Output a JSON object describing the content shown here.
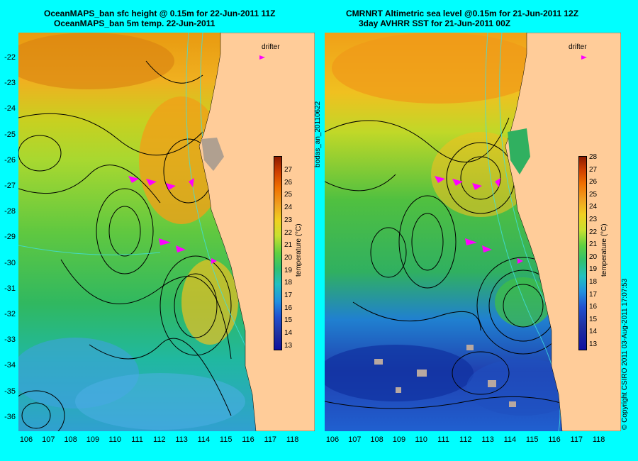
{
  "left_panel": {
    "title_line1": "OceanMAPS_ban sfc height  @ 0.15m for 22-Jun-2011 11Z",
    "title_line2": "OceanMAPS_ban 5m temp. 22-Jun-2011",
    "drifter_label": "drifter"
  },
  "right_panel": {
    "title_line1": "CMRNRT Altimetric sea level  @0.15m  for 21-Jun-2011 12Z",
    "title_line2": "3day AVHRR SST for 21-Jun-2011 00Z",
    "drifter_label": "drifter"
  },
  "mid_label": "bodas_an_20110622",
  "copyright": "© Copyright CSIRO 2011   03-Aug-2011 17:07:53",
  "lat_ticks": [
    "-22",
    "-23",
    "-24",
    "-25",
    "-26",
    "-27",
    "-28",
    "-29",
    "-30",
    "-31",
    "-32",
    "-33",
    "-34",
    "-35",
    "-36"
  ],
  "lon_ticks": [
    "106",
    "107",
    "108",
    "109",
    "110",
    "111",
    "112",
    "113",
    "114",
    "115",
    "116",
    "117",
    "118"
  ],
  "colorbar": {
    "label": "temperature (°C)",
    "left_ticks": [
      "27",
      "26",
      "25",
      "24",
      "23",
      "22",
      "21",
      "20",
      "19",
      "18",
      "17",
      "16",
      "15",
      "14",
      "13"
    ],
    "right_ticks": [
      "28",
      "27",
      "26",
      "25",
      "24",
      "23",
      "22",
      "21",
      "20",
      "19",
      "18",
      "17",
      "16",
      "15",
      "14",
      "13"
    ]
  },
  "colors": {
    "background": "#00ffff",
    "land": "#ffcc99",
    "drifter": "#ff00ff"
  }
}
